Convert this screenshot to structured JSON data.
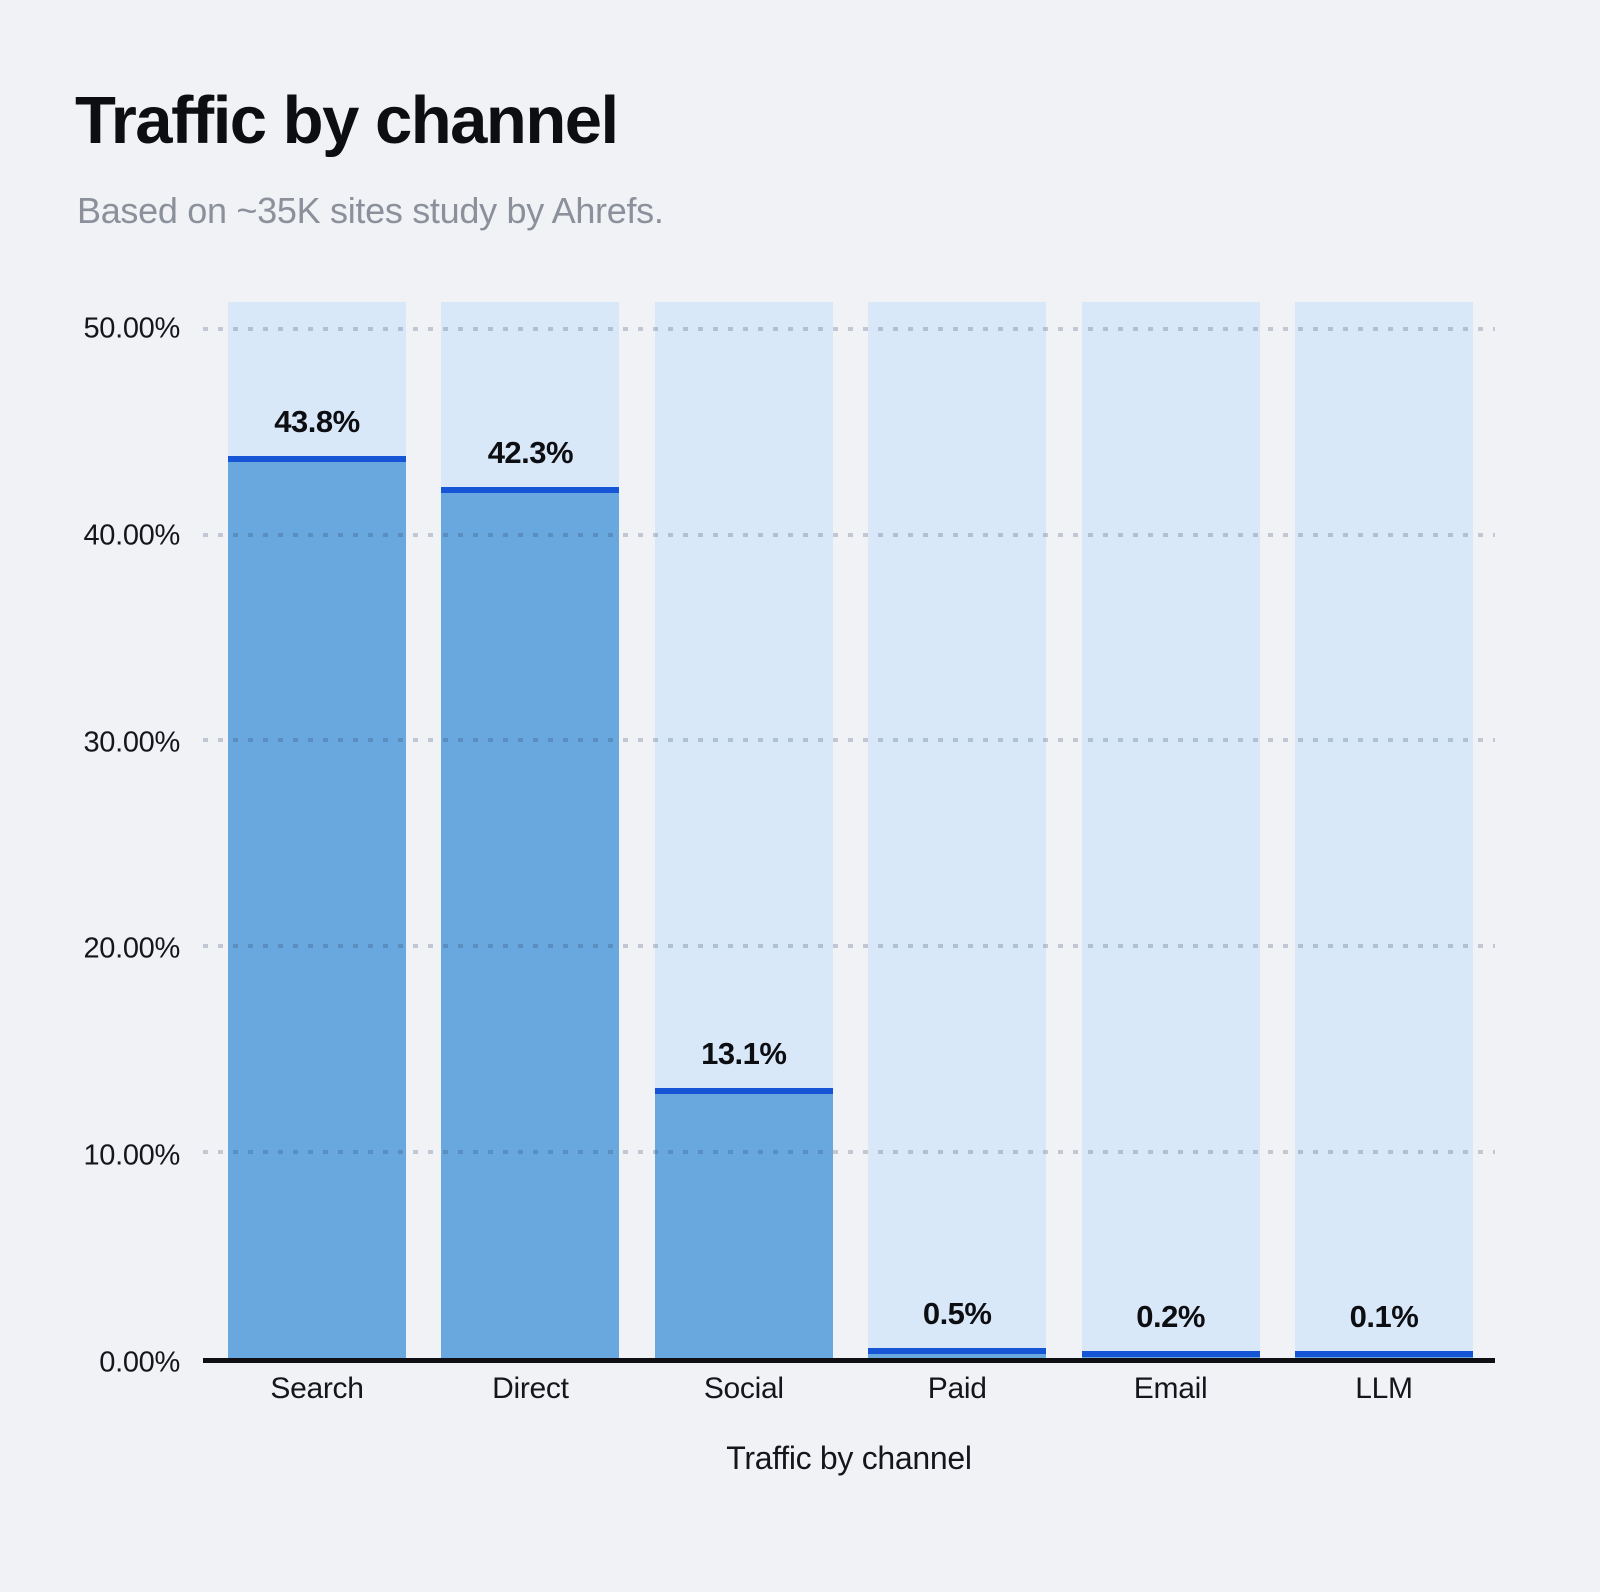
{
  "chart": {
    "title": "Traffic by channel",
    "subtitle": "Based on ~35K sites study by Ahrefs.",
    "x_axis_title": "Traffic by channel"
  },
  "chart_data": {
    "type": "bar",
    "title": "Traffic by channel",
    "subtitle": "Based on ~35K sites study by Ahrefs.",
    "categories": [
      "Search",
      "Direct",
      "Social",
      "Paid",
      "Email",
      "LLM"
    ],
    "values": [
      43.8,
      42.3,
      13.1,
      0.5,
      0.2,
      0.1
    ],
    "value_labels": [
      "43.8%",
      "42.3%",
      "13.1%",
      "0.5%",
      "0.2%",
      "0.1%"
    ],
    "xlabel": "Traffic by channel",
    "ylabel": "",
    "ylim": [
      0,
      51.3
    ],
    "ytick_values": [
      0,
      10,
      20,
      30,
      40,
      50
    ],
    "ytick_labels": [
      "0.00%",
      "10.00%",
      "20.00%",
      "30.00%",
      "40.00%",
      "50.00%"
    ],
    "grid": "horizontal-dotted",
    "legend": "none",
    "colors": {
      "background": "#f0f2f6",
      "column_background": "#d9e8f9",
      "bar_fill": "#69a8de",
      "bar_top_edge": "#1656d6",
      "axis_line": "#101014",
      "grid_dots": "#c5cad4",
      "title_text": "#0d0e12",
      "subtitle_text": "#8b909b"
    }
  }
}
